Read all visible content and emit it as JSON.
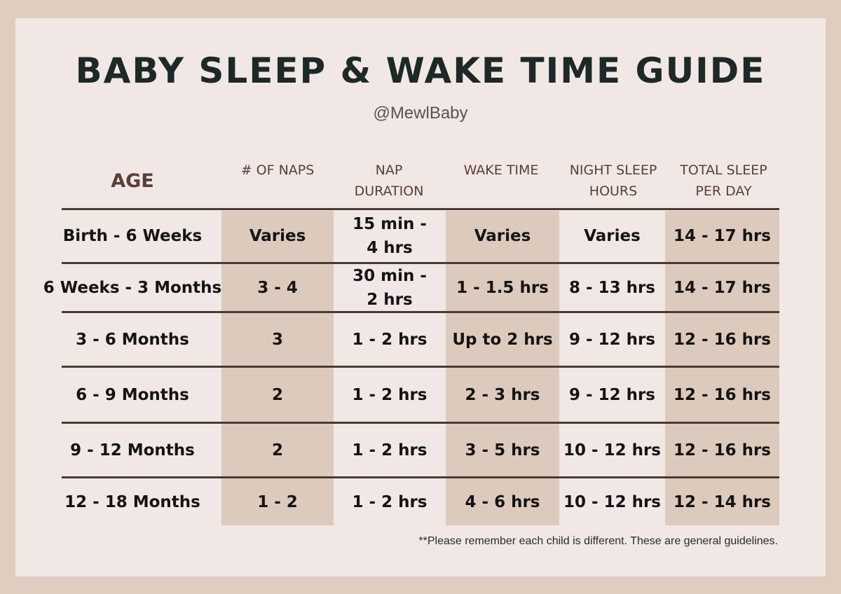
{
  "title": "BABY SLEEP & WAKE TIME GUIDE",
  "subtitle": "@MewlBaby",
  "headers": [
    "AGE",
    "# OF NAPS",
    "NAP DURATION",
    "WAKE TIME",
    "NIGHT SLEEP HOURS",
    "TOTAL SLEEP PER DAY"
  ],
  "rows": [
    [
      "Birth - 6 Weeks",
      "Varies",
      "15 min - 4 hrs",
      "Varies",
      "Varies",
      "14 - 17 hrs"
    ],
    [
      "6 Weeks - 3 Months",
      "3 - 4",
      "30 min - 2 hrs",
      "1 - 1.5 hrs",
      "8 - 13 hrs",
      "14 - 17 hrs"
    ],
    [
      "3 - 6 Months",
      "3",
      "1 - 2 hrs",
      "Up to 2 hrs",
      "9 - 12 hrs",
      "12 - 16 hrs"
    ],
    [
      "6 - 9 Months",
      "2",
      "1 - 2 hrs",
      "2 - 3 hrs",
      "9 - 12 hrs",
      "12 - 16 hrs"
    ],
    [
      "9 - 12 Months",
      "2",
      "1 - 2 hrs",
      "3 - 5 hrs",
      "10 - 12 hrs",
      "12 - 16 hrs"
    ],
    [
      "12 - 18 Months",
      "1 - 2",
      "1 - 2 hrs",
      "4 - 6 hrs",
      "10 - 12 hrs",
      "12 - 14 hrs"
    ]
  ],
  "footnote": "**Please remember each child is different.  These are general guidelines.",
  "colors": {
    "background": "#dfcdbf",
    "card": "#f1e8e6",
    "shaded_column": "#dccbbd",
    "title": "#1d2926",
    "header": "#5a3e35",
    "rule": "#4a3a35"
  }
}
